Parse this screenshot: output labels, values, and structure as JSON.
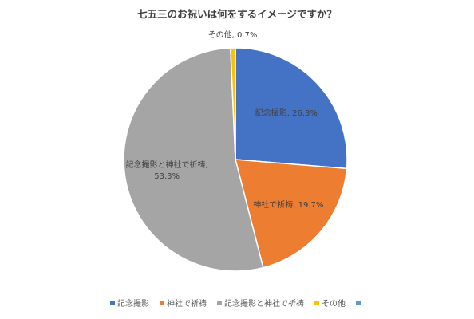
{
  "chart_data": {
    "type": "pie",
    "title": "七五三のお祝いは何をするイメージですか？",
    "slices": [
      {
        "label": "記念撮影",
        "value": 26.3,
        "data_label": "記念撮影, 26.3%",
        "color": "#4472C4"
      },
      {
        "label": "神社で祈祷",
        "value": 19.7,
        "data_label": "神社で祈祷, 19.7%",
        "color": "#ED7D31"
      },
      {
        "label": "記念撮影と神社で祈祷",
        "value": 53.3,
        "data_label_lines": [
          "記念撮影と神社で祈祷,",
          "53.3%"
        ],
        "color": "#A5A5A5"
      },
      {
        "label": "その他",
        "value": 0.7,
        "data_label": "その他, 0.7%",
        "color": "#FFC000"
      }
    ],
    "legend": {
      "position": "bottom",
      "items": [
        {
          "label": "記念撮影",
          "color": "#4472C4"
        },
        {
          "label": "神社で祈祷",
          "color": "#ED7D31"
        },
        {
          "label": "記念撮影と神社で祈祷",
          "color": "#A5A5A5"
        },
        {
          "label": "その他",
          "color": "#FFC000"
        },
        {
          "label": "",
          "color": "#5B9BD5"
        }
      ]
    }
  }
}
